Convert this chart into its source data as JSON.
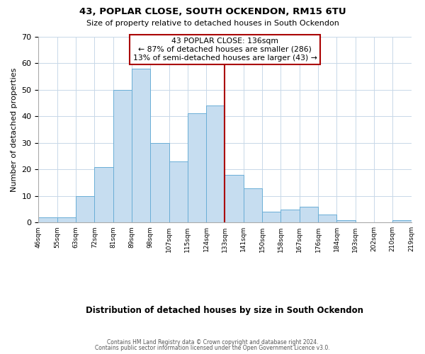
{
  "title": "43, POPLAR CLOSE, SOUTH OCKENDON, RM15 6TU",
  "subtitle": "Size of property relative to detached houses in South Ockendon",
  "xlabel": "Distribution of detached houses by size in South Ockendon",
  "ylabel": "Number of detached properties",
  "bin_labels": [
    "46sqm",
    "55sqm",
    "63sqm",
    "72sqm",
    "81sqm",
    "89sqm",
    "98sqm",
    "107sqm",
    "115sqm",
    "124sqm",
    "133sqm",
    "141sqm",
    "150sqm",
    "158sqm",
    "167sqm",
    "176sqm",
    "184sqm",
    "193sqm",
    "202sqm",
    "210sqm",
    "219sqm"
  ],
  "bar_heights": [
    2,
    2,
    10,
    21,
    50,
    58,
    30,
    23,
    41,
    44,
    18,
    13,
    4,
    5,
    6,
    3,
    1,
    0,
    0,
    1
  ],
  "bar_color": "#c6ddf0",
  "bar_edge_color": "#6aaed6",
  "ylim": [
    0,
    70
  ],
  "yticks": [
    0,
    10,
    20,
    30,
    40,
    50,
    60,
    70
  ],
  "vline_bin_index": 10,
  "annotation_title": "43 POPLAR CLOSE: 136sqm",
  "annotation_line1": "← 87% of detached houses are smaller (286)",
  "annotation_line2": "13% of semi-detached houses are larger (43) →",
  "vline_color": "#aa0000",
  "annotation_box_edge": "#aa0000",
  "footer1": "Contains HM Land Registry data © Crown copyright and database right 2024.",
  "footer2": "Contains public sector information licensed under the Open Government Licence v3.0.",
  "n_bins": 20
}
